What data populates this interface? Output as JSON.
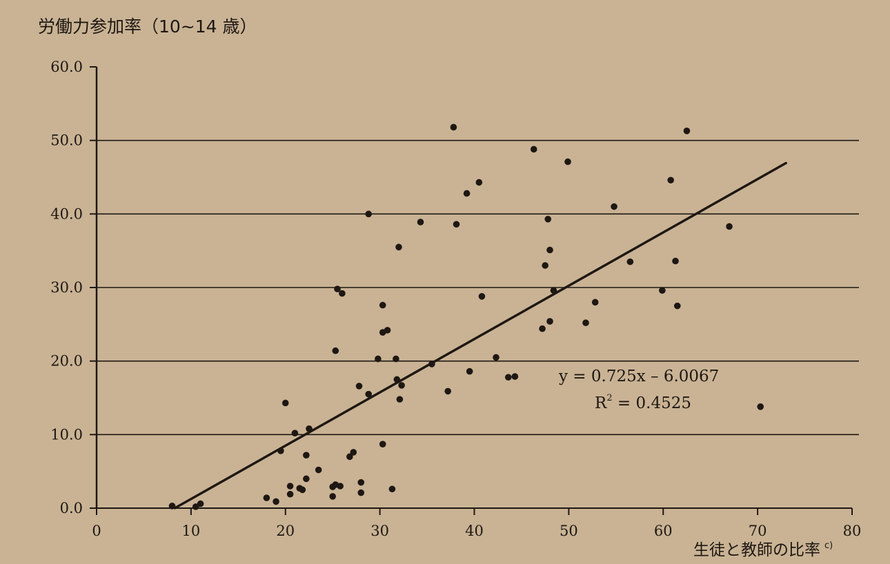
{
  "chart_data": {
    "type": "scatter",
    "ylabel": "労働力参加率（10~14 歳）",
    "xlabel": "生徒と教師の比率",
    "xlabel_sup": "c)",
    "xlim": [
      0,
      80
    ],
    "ylim": [
      0,
      60
    ],
    "x_ticks": [
      "0",
      "10",
      "20",
      "30",
      "40",
      "50",
      "60",
      "70",
      "80"
    ],
    "y_ticks": [
      "0.0",
      "10.0",
      "20.0",
      "30.0",
      "40.0",
      "50.0",
      "60.0"
    ],
    "grid": true,
    "trendline": {
      "equation": "y = 0.725x – 6.0067",
      "r2_prefix": "R",
      "r2_exp": "2",
      "r2_value": " = 0.4525",
      "slope": 0.725,
      "intercept": -6.0067,
      "x_range": [
        8.3,
        73
      ]
    },
    "series": [
      {
        "points": [
          [
            8,
            0.3
          ],
          [
            10.5,
            0.2
          ],
          [
            11,
            0.6
          ],
          [
            18,
            1.4
          ],
          [
            19,
            0.9
          ],
          [
            19.5,
            7.8
          ],
          [
            20,
            14.3
          ],
          [
            20.5,
            1.9
          ],
          [
            20.5,
            3.0
          ],
          [
            21,
            10.2
          ],
          [
            21.5,
            2.7
          ],
          [
            21.8,
            2.5
          ],
          [
            22.2,
            7.2
          ],
          [
            22.2,
            4.0
          ],
          [
            22.5,
            10.8
          ],
          [
            23.5,
            5.2
          ],
          [
            25,
            1.6
          ],
          [
            25,
            2.9
          ],
          [
            25.3,
            3.2
          ],
          [
            25.3,
            21.4
          ],
          [
            25.5,
            29.8
          ],
          [
            25.8,
            3.0
          ],
          [
            26,
            29.2
          ],
          [
            26.8,
            7.0
          ],
          [
            27.2,
            7.6
          ],
          [
            27.8,
            16.6
          ],
          [
            28,
            3.5
          ],
          [
            28,
            2.1
          ],
          [
            28.8,
            15.5
          ],
          [
            28.8,
            40.0
          ],
          [
            29.8,
            20.3
          ],
          [
            30.3,
            27.6
          ],
          [
            30.3,
            23.9
          ],
          [
            30.3,
            8.7
          ],
          [
            30.8,
            24.2
          ],
          [
            31.3,
            2.6
          ],
          [
            31.7,
            20.3
          ],
          [
            31.8,
            17.5
          ],
          [
            32,
            35.5
          ],
          [
            32.1,
            14.8
          ],
          [
            32.3,
            16.7
          ],
          [
            34.3,
            38.9
          ],
          [
            35.5,
            19.6
          ],
          [
            37.2,
            15.9
          ],
          [
            37.8,
            51.8
          ],
          [
            38.1,
            38.6
          ],
          [
            39.2,
            42.8
          ],
          [
            39.5,
            18.6
          ],
          [
            40.5,
            44.3
          ],
          [
            40.8,
            28.8
          ],
          [
            42.3,
            20.5
          ],
          [
            43.6,
            17.8
          ],
          [
            44.3,
            17.9
          ],
          [
            46.3,
            48.8
          ],
          [
            47.2,
            24.4
          ],
          [
            47.5,
            33.0
          ],
          [
            47.8,
            39.3
          ],
          [
            48,
            35.1
          ],
          [
            48,
            25.4
          ],
          [
            48.4,
            29.6
          ],
          [
            49.9,
            47.1
          ],
          [
            51.8,
            25.2
          ],
          [
            52.8,
            28.0
          ],
          [
            54.8,
            41.0
          ],
          [
            56.5,
            33.5
          ],
          [
            59.9,
            29.6
          ],
          [
            60.8,
            44.6
          ],
          [
            61.3,
            33.6
          ],
          [
            61.5,
            27.5
          ],
          [
            62.5,
            51.3
          ],
          [
            67,
            38.3
          ],
          [
            70.3,
            13.8
          ]
        ]
      }
    ]
  }
}
